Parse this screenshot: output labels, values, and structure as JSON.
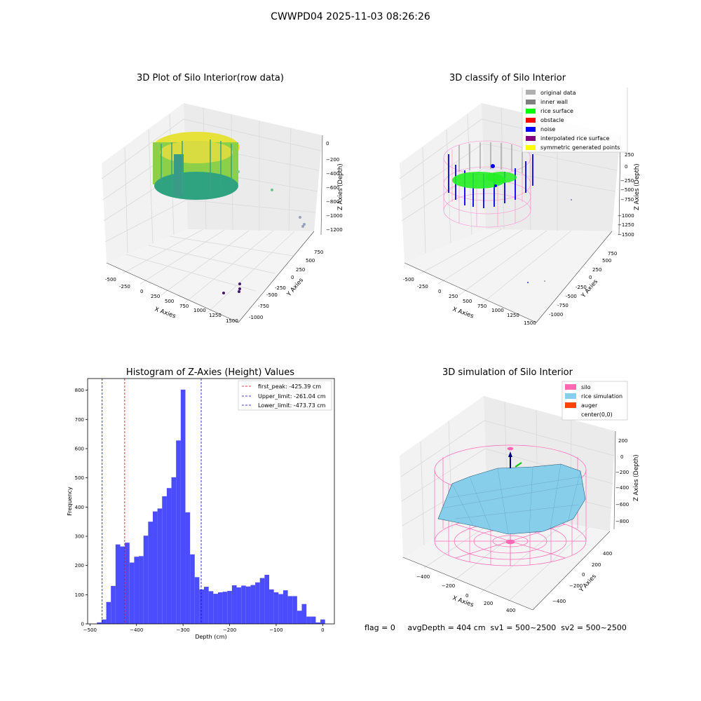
{
  "figure": {
    "title": "CWWPD04 2025-11-03 08:26:26"
  },
  "panel_raw": {
    "title": "3D Plot of Silo Interior(row data)",
    "x_label": "X Axies",
    "y_label": "Y Axies",
    "z_label": "Z Axies (Depth)",
    "x_ticks": [
      "-500",
      "-250",
      "0",
      "250",
      "500",
      "750",
      "1000",
      "1250",
      "1500"
    ],
    "y_ticks": [
      "-1000",
      "-750",
      "-500",
      "-250",
      "0",
      "250",
      "500",
      "750"
    ],
    "z_ticks": [
      "0",
      "−200",
      "−400",
      "−600",
      "−800",
      "−1000",
      "−1200"
    ]
  },
  "panel_classify": {
    "title": "3D classify of Silo Interior",
    "x_label": "X Axies",
    "y_label": "Y Axies",
    "z_label": "Z Axies (Depth)",
    "x_ticks": [
      "-500",
      "-250",
      "0",
      "250",
      "500",
      "750",
      "1000",
      "1250",
      "1500"
    ],
    "y_ticks": [
      "-1000",
      "-750",
      "-500",
      "-250",
      "0",
      "250",
      "500",
      "750"
    ],
    "z_ticks": [
      "250",
      "0",
      "−250",
      "−500",
      "−750",
      "−1000",
      "−1250",
      "−1500"
    ],
    "legend": [
      {
        "label": "original data",
        "color": "#b0b0b0"
      },
      {
        "label": "inner wall",
        "color": "#808080"
      },
      {
        "label": "rice surface",
        "color": "#00ff00"
      },
      {
        "label": "obstacle",
        "color": "#ff0000"
      },
      {
        "label": "noise",
        "color": "#0000ff"
      },
      {
        "label": "interpolated rice surface",
        "color": "#800080"
      },
      {
        "label": "symmetric generated points",
        "color": "#ffff00"
      }
    ]
  },
  "panel_sim": {
    "title": "3D simulation of Silo Interior",
    "x_label": "X Axies",
    "y_label": "Y Axies",
    "z_label": "Z Axies (Depth)",
    "x_ticks": [
      "−400",
      "−200",
      "0",
      "200",
      "400"
    ],
    "y_ticks": [
      "−400",
      "−200",
      "0",
      "200",
      "400"
    ],
    "z_ticks": [
      "200",
      "0",
      "−200",
      "−400",
      "−600",
      "−800"
    ],
    "legend": [
      {
        "label": "silo",
        "color": "#ff69b4"
      },
      {
        "label": "rice simulation",
        "color": "#87ceeb"
      },
      {
        "label": "auger",
        "color": "#ff4500"
      },
      {
        "label": "center(0,0)",
        "color": "#ffffff"
      }
    ]
  },
  "footer": "flag = 0     avgDepth = 404 cm  sv1 = 500~2500  sv2 = 500~2500",
  "chart_data": {
    "type": "bar",
    "title": "Histogram of Z-Axies (Height) Values",
    "xlabel": "Depth (cm)",
    "ylabel": "Frequency",
    "xlim": [
      -505,
      25
    ],
    "ylim": [
      0,
      840
    ],
    "x_ticks": [
      -500,
      -400,
      -300,
      -200,
      -100,
      0
    ],
    "y_ticks": [
      0,
      100,
      200,
      300,
      400,
      500,
      600,
      700,
      800
    ],
    "bin_width": 10,
    "bins": [
      {
        "x": -480,
        "y": 5
      },
      {
        "x": -470,
        "y": 15
      },
      {
        "x": -460,
        "y": 75
      },
      {
        "x": -450,
        "y": 130
      },
      {
        "x": -440,
        "y": 272
      },
      {
        "x": -430,
        "y": 265
      },
      {
        "x": -420,
        "y": 278
      },
      {
        "x": -410,
        "y": 210
      },
      {
        "x": -400,
        "y": 230
      },
      {
        "x": -390,
        "y": 232
      },
      {
        "x": -380,
        "y": 302
      },
      {
        "x": -370,
        "y": 350
      },
      {
        "x": -360,
        "y": 385
      },
      {
        "x": -350,
        "y": 395
      },
      {
        "x": -340,
        "y": 437
      },
      {
        "x": -330,
        "y": 465
      },
      {
        "x": -320,
        "y": 502
      },
      {
        "x": -310,
        "y": 628
      },
      {
        "x": -300,
        "y": 802
      },
      {
        "x": -290,
        "y": 382
      },
      {
        "x": -280,
        "y": 238
      },
      {
        "x": -270,
        "y": 160
      },
      {
        "x": -260,
        "y": 118
      },
      {
        "x": -250,
        "y": 127
      },
      {
        "x": -240,
        "y": 112
      },
      {
        "x": -230,
        "y": 103
      },
      {
        "x": -220,
        "y": 108
      },
      {
        "x": -210,
        "y": 110
      },
      {
        "x": -200,
        "y": 113
      },
      {
        "x": -190,
        "y": 132
      },
      {
        "x": -180,
        "y": 125
      },
      {
        "x": -170,
        "y": 131
      },
      {
        "x": -160,
        "y": 128
      },
      {
        "x": -150,
        "y": 133
      },
      {
        "x": -140,
        "y": 142
      },
      {
        "x": -130,
        "y": 157
      },
      {
        "x": -120,
        "y": 168
      },
      {
        "x": -110,
        "y": 118
      },
      {
        "x": -100,
        "y": 108
      },
      {
        "x": -90,
        "y": 102
      },
      {
        "x": -80,
        "y": 115
      },
      {
        "x": -70,
        "y": 95
      },
      {
        "x": -60,
        "y": 95
      },
      {
        "x": -50,
        "y": 45
      },
      {
        "x": -40,
        "y": 68
      },
      {
        "x": -30,
        "y": 25
      },
      {
        "x": -20,
        "y": 25
      },
      {
        "x": -10,
        "y": 5
      },
      {
        "x": 0,
        "y": 15
      }
    ],
    "vlines": [
      {
        "name": "first_peak: -425.39 cm",
        "x": -425.39,
        "color": "#ff0000"
      },
      {
        "name": "Upper_limit: -261.04 cm",
        "x": -261.04,
        "color": "#0000ff"
      },
      {
        "name": "Lower_limit: -473.73 cm",
        "x": -473.73,
        "color": "#0000ff"
      }
    ],
    "bar_color": "#4c4cff",
    "legend_position": "upper right"
  }
}
